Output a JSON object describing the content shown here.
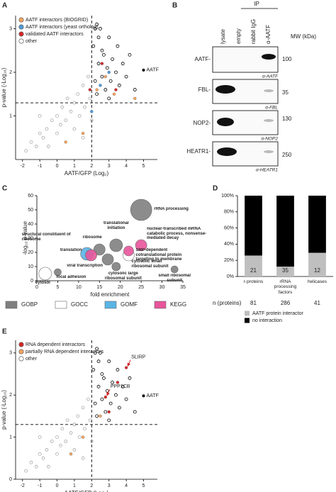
{
  "chart_data": [
    {
      "type": "scatter",
      "panel": "A",
      "xlabel": "AATF/GFP (Log₂)",
      "ylabel": "p-value (-Log₁₀)",
      "xlim": [
        -2.4,
        5.8
      ],
      "ylim": [
        0,
        3.3
      ],
      "xticks": [
        -2,
        -1,
        0,
        1,
        2,
        3,
        4,
        5
      ],
      "yticks": [
        1,
        2,
        3
      ],
      "thresholds": {
        "x": 2,
        "y": 1.3
      },
      "significant_color": "#000000",
      "series": [
        {
          "name": "AATF interactors (BIOGRID)",
          "color": "#f4a460",
          "marker": "filled",
          "x": [
            1.5,
            2.3,
            2.8,
            3.3,
            4.5,
            0.5
          ],
          "values": [
            0.6,
            1.6,
            1.9,
            1.5,
            1.4,
            0.4
          ]
        },
        {
          "name": "AATF interactors (yeast ortholog)",
          "color": "#4f9bd9",
          "marker": "filled",
          "x": [
            2.5,
            3.0,
            2.0
          ],
          "values": [
            1.7,
            2.0,
            1.1
          ]
        },
        {
          "name": "validated AATF interactors",
          "color": "#d62728",
          "marker": "filled",
          "x": [
            1.9,
            2.6,
            3.4
          ],
          "values": [
            1.6,
            2.2,
            1.6
          ]
        },
        {
          "name": "other",
          "color": "#aaaaaa",
          "marker": "hollow",
          "x": [
            -1.8,
            -1.5,
            -1.2,
            -1,
            -0.8,
            -0.6,
            -0.5,
            -0.3,
            0,
            0,
            0.2,
            0.3,
            0.5,
            0.6,
            0.8,
            1,
            1,
            1.2,
            1.3,
            1.5,
            1.6,
            1.8,
            1.9,
            2.1,
            2.2,
            2.3,
            2.4,
            2.5,
            2.6,
            2.7,
            2.8,
            2.9,
            3,
            3.1,
            3.2,
            3.4,
            3.5,
            3.6,
            3.8,
            4,
            4.2,
            4.5,
            2.2,
            2.4,
            3,
            2,
            1.5,
            -1,
            2.3,
            2.6
          ],
          "values": [
            0.2,
            0.4,
            0.3,
            0.6,
            0.5,
            0.7,
            0.3,
            0.9,
            0.6,
            1,
            0.8,
            1.2,
            0.9,
            1.4,
            1.1,
            1.3,
            0.7,
            1.5,
            1,
            1.7,
            1.2,
            1.9,
            1.4,
            2.6,
            1.8,
            1.5,
            2.2,
            3,
            1.9,
            2.4,
            1.6,
            2.1,
            2.8,
            1.8,
            2.3,
            2,
            2.6,
            1.7,
            2.2,
            1.9,
            2.4,
            1.6,
            3,
            2.8,
            1.4,
            0.9,
            0.5,
            1,
            3.1,
            2.5
          ]
        }
      ],
      "annotations": [
        {
          "text": "AATF",
          "x": 5.0,
          "y": 2.05,
          "marker": true
        }
      ]
    },
    {
      "type": "bubble",
      "panel": "C",
      "xlabel": "fold enrichment",
      "ylabel": "-log₁₀ p-value",
      "xlim": [
        0,
        35
      ],
      "ylim": [
        0,
        60
      ],
      "xticks": [
        0,
        5,
        10,
        15,
        20,
        25,
        30,
        35
      ],
      "yticks": [
        0,
        10,
        20,
        30,
        40,
        50,
        60
      ],
      "series": [
        {
          "name": "GOBP",
          "color": "#7f7f7f",
          "x": [
            25,
            19,
            17,
            19,
            33,
            5,
            15
          ],
          "values": [
            50,
            25,
            15,
            10,
            8,
            6,
            22
          ],
          "sizes": [
            15,
            9,
            8,
            6,
            5,
            5,
            8
          ],
          "labels": [
            "rRNA processing",
            "translational initiation",
            "viral transcription",
            "cytosolic large ribosomal subunit",
            "small ribosomal subunit",
            "focal adhesion",
            "ribosome"
          ]
        },
        {
          "name": "GOCC",
          "color": "#ffffff",
          "x": [
            2,
            22
          ],
          "values": [
            5,
            18
          ],
          "sizes": [
            9,
            8
          ],
          "labels": [
            "cytosol",
            "cytosolic small ribosomal subunit"
          ]
        },
        {
          "name": "GOMF",
          "color": "#5ab4e5",
          "x": [
            12
          ],
          "values": [
            19
          ],
          "sizes": [
            9
          ],
          "labels": [
            "structural constituent of ribosome"
          ]
        },
        {
          "name": "KEGG",
          "color": "#e8559b",
          "x": [
            13,
            25,
            22
          ],
          "values": [
            18,
            25,
            21
          ],
          "sizes": [
            8,
            8,
            7
          ],
          "labels": [
            "translation",
            "nuclear-transcribed mRNA catabolic process, nonsense-mediated decay",
            "SRP-dependent cotranslational protein targeting to membrane"
          ]
        }
      ]
    },
    {
      "type": "bar",
      "panel": "D",
      "stacked": true,
      "categories": [
        "r-proteins",
        "rRNA processing factors",
        "helicases"
      ],
      "ylim": [
        0,
        100
      ],
      "yticks": [
        {
          "value": 0,
          "label": "0%"
        },
        {
          "value": 20,
          "label": "20%"
        },
        {
          "value": 40,
          "label": "40%"
        },
        {
          "value": 60,
          "label": "60%"
        },
        {
          "value": 80,
          "label": "80%"
        },
        {
          "value": 100,
          "label": "100%"
        }
      ],
      "series": [
        {
          "name": "AATF protein interactor",
          "color": "#bfbfbf",
          "values": [
            25.9,
            12.2,
            29.3
          ]
        },
        {
          "name": "no interaction",
          "color": "#000000",
          "values": [
            74.1,
            87.8,
            70.7
          ]
        }
      ],
      "interactor_counts": [
        21,
        35,
        12
      ],
      "n_label": "n (proteins)",
      "n_proteins": [
        81,
        286,
        41
      ]
    },
    {
      "type": "scatter",
      "panel": "E",
      "xlabel": "AATF/GFP (Log₂)",
      "ylabel": "p-value (-Log₁₀)",
      "xlim": [
        -2.4,
        5.8
      ],
      "ylim": [
        0,
        3.3
      ],
      "xticks": [
        -2,
        -1,
        0,
        1,
        2,
        3,
        4,
        5
      ],
      "yticks": [
        0,
        1,
        2,
        3
      ],
      "thresholds": {
        "x": 2,
        "y": 1.3
      },
      "significant_color": "#000000",
      "series": [
        {
          "name": "RNA dependent interactors",
          "color": "#d62728",
          "marker": "filled",
          "x": [
            4.0,
            3.5,
            2.8,
            3.0
          ],
          "values": [
            2.65,
            2.3,
            1.95,
            1.6
          ]
        },
        {
          "name": "partially RNA dependent interactors",
          "color": "#f4a460",
          "marker": "filled",
          "x": [
            1.5,
            2.5,
            0.8
          ],
          "values": [
            1.0,
            1.5,
            0.6
          ]
        },
        {
          "name": "other",
          "color": "#aaaaaa",
          "marker": "hollow",
          "x": [
            -1.8,
            -1.5,
            -1.2,
            -1,
            -0.8,
            -0.6,
            -0.5,
            -0.3,
            0,
            0,
            0.2,
            0.3,
            0.5,
            0.6,
            0.8,
            1,
            1,
            1.2,
            1.3,
            1.5,
            1.6,
            1.8,
            1.9,
            2.1,
            2.2,
            2.3,
            2.4,
            2.5,
            2.6,
            2.7,
            2.8,
            2.9,
            3,
            3.1,
            3.2,
            3.4,
            3.5,
            3.6,
            3.8,
            4,
            4.2,
            4.5,
            2.2,
            2.4,
            3,
            2,
            1.5,
            -1,
            2.3,
            2.6
          ],
          "values": [
            0.2,
            0.4,
            0.3,
            0.6,
            0.5,
            0.7,
            0.3,
            0.9,
            0.6,
            1,
            0.8,
            1.2,
            0.9,
            1.4,
            1.1,
            1.3,
            0.7,
            1.5,
            1,
            1.7,
            1.2,
            1.9,
            1.4,
            2.6,
            1.8,
            1.5,
            2.2,
            3,
            1.9,
            2.4,
            1.6,
            2.1,
            2.8,
            1.8,
            2.3,
            2,
            2.6,
            1.7,
            2.2,
            1.9,
            2.4,
            1.6,
            3,
            2.8,
            1.4,
            0.9,
            0.5,
            1,
            3.1,
            2.5
          ]
        }
      ],
      "annotations": [
        {
          "text": "SLIRP",
          "x": 4.0,
          "y": 2.65,
          "arrow": true
        },
        {
          "text": "PPP1CB",
          "x": 2.8,
          "y": 1.95,
          "arrow": true
        },
        {
          "text": "AATF",
          "x": 5.0,
          "y": 1.98,
          "marker": true
        }
      ]
    }
  ],
  "blot": {
    "panel": "B",
    "ip_label": "IP",
    "lanes": [
      "lysate",
      "empty",
      "rabbit IgG",
      "α-AATF"
    ],
    "mw_header": "MW (kDa)",
    "rows": [
      {
        "protein": "AATF-",
        "mw": 100,
        "antibody": "α-AATF"
      },
      {
        "protein": "FBL-",
        "mw": 35,
        "antibody": "α-FBL"
      },
      {
        "protein": "NOP2-",
        "mw": 130,
        "antibody": "α-NOP2"
      },
      {
        "protein": "HEATR1-",
        "mw": 250,
        "antibody": "α-HEATR1"
      }
    ]
  }
}
